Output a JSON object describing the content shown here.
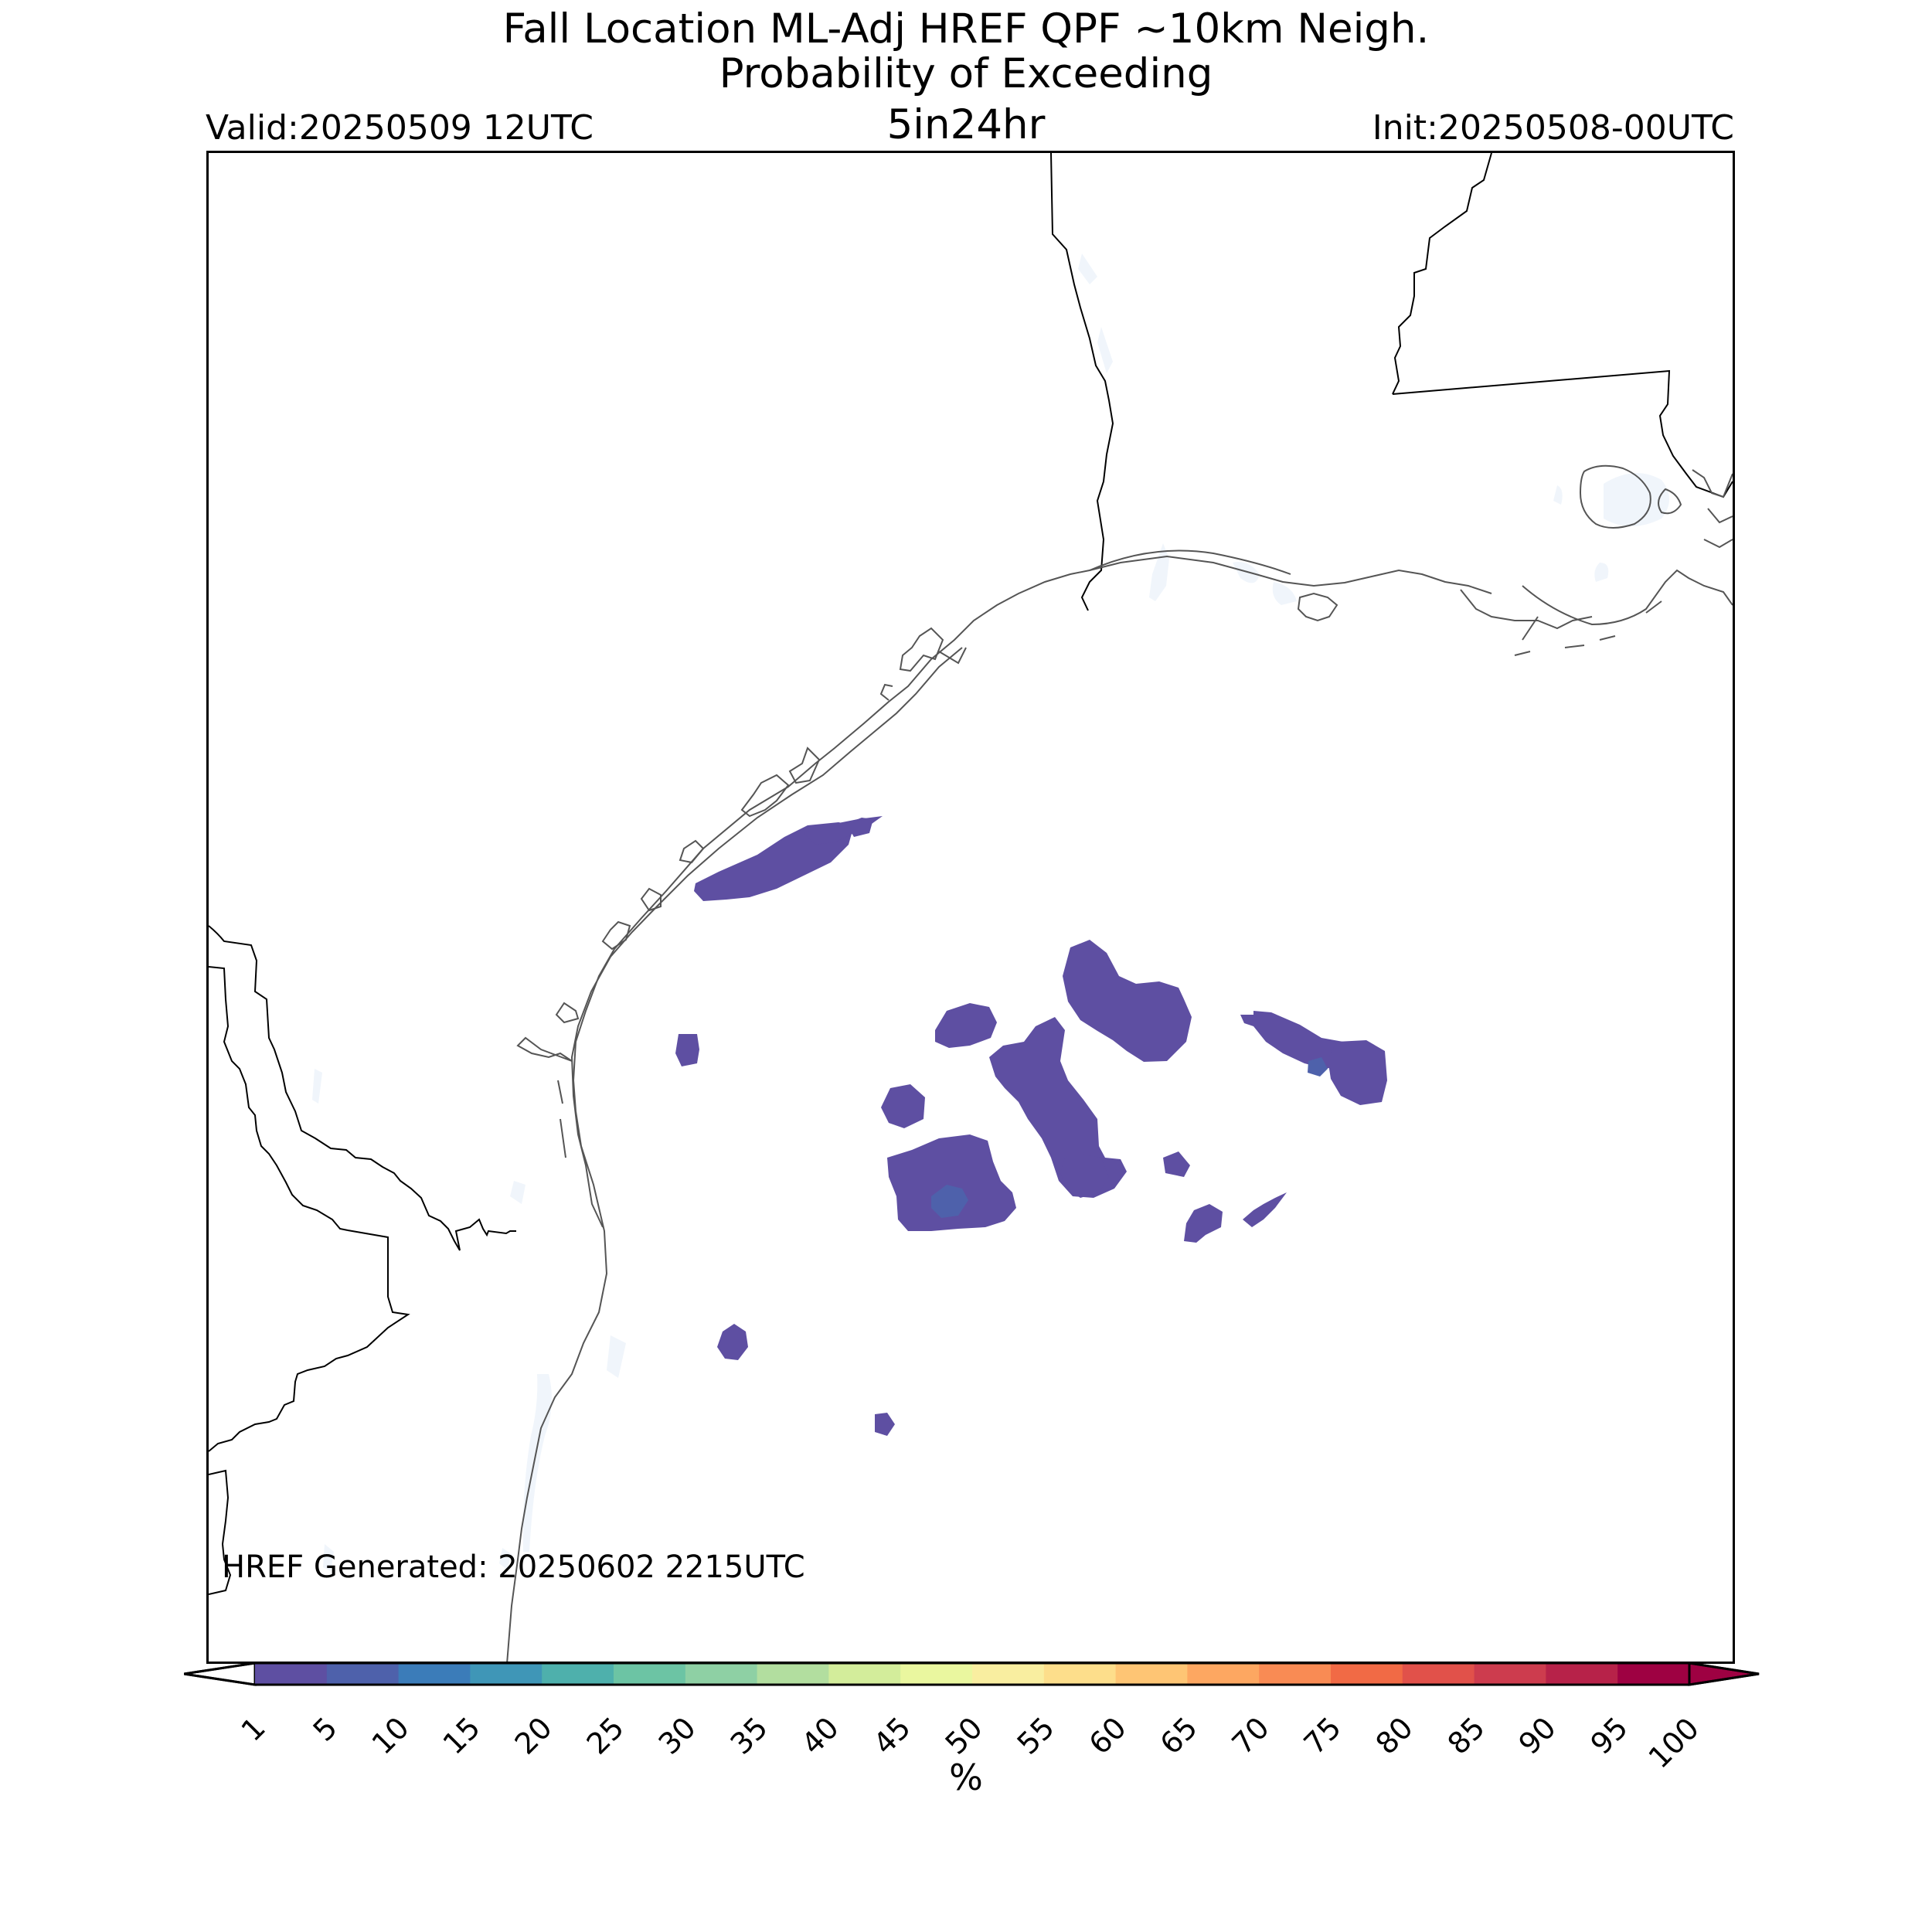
{
  "title": {
    "line1": "Fall Location ML-Adj HREF QPF ~10km Neigh.",
    "line2": "Probability of Exceeding",
    "threshold": "5in24hr"
  },
  "valid_label": "Valid:20250509 12UTC",
  "init_label": "Init:20250508-00UTC",
  "generated_label": "HREF Generated: 20250602 2215UTC",
  "colorbar": {
    "unit": "%",
    "ticks": [
      "1",
      "5",
      "10",
      "15",
      "20",
      "25",
      "30",
      "35",
      "40",
      "45",
      "50",
      "55",
      "60",
      "65",
      "70",
      "75",
      "80",
      "85",
      "90",
      "95",
      "100"
    ],
    "colors": [
      "#5e4fa2",
      "#4e61ab",
      "#3b7cb9",
      "#3f96b7",
      "#4eb0ac",
      "#6cc4a4",
      "#8ed0a4",
      "#b2de9f",
      "#d3ed9b",
      "#eaf79f",
      "#f9eea0",
      "#fdde8b",
      "#fec574",
      "#fda761",
      "#f98b54",
      "#f16a45",
      "#e1514a",
      "#cd3c4e",
      "#b72249",
      "#9e0142"
    ],
    "under_color": "#ffffff",
    "over_color": "#9e0142"
  },
  "map": {
    "region": "Texas-Louisiana Gulf Coast",
    "land_color": "#ffffff",
    "water_bodies_color": "#f0f5fb",
    "boundary_color": "#000000",
    "probability_areas_color": "#5e4fa2",
    "higher_probability_color": "#4e61ab"
  }
}
